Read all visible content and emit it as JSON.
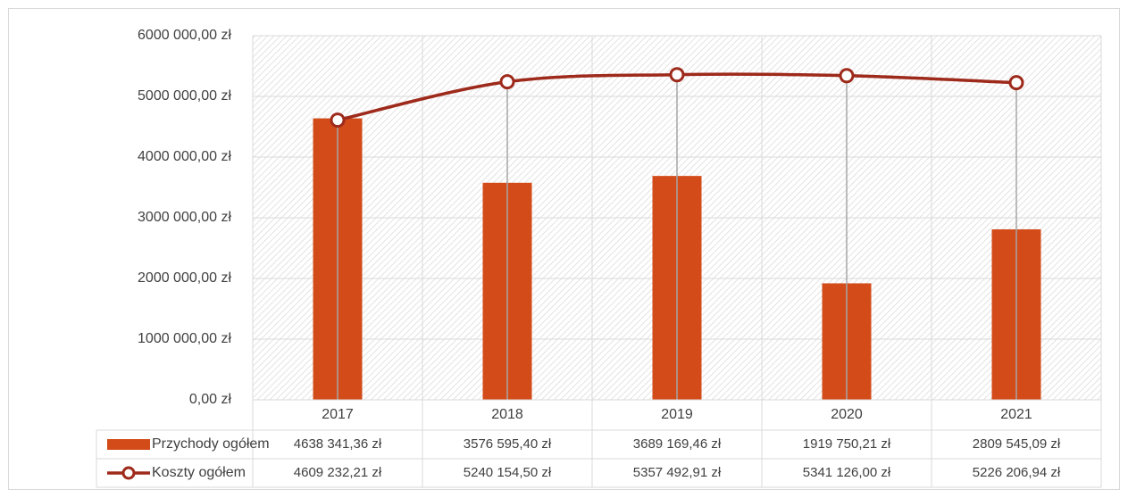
{
  "chart_data": {
    "type": "bar",
    "categories": [
      "2017",
      "2018",
      "2019",
      "2020",
      "2021"
    ],
    "series": [
      {
        "name": "Przychody ogółem",
        "type": "bar",
        "color": "#d34b19",
        "values": [
          4638341.36,
          3576595.4,
          3689169.46,
          1919750.21,
          2809545.09
        ],
        "value_labels": [
          "4638 341,36 zł",
          "3576 595,40 zł",
          "3689 169,46 zł",
          "1919 750,21 zł",
          "2809 545,09 zł"
        ]
      },
      {
        "name": "Koszty ogółem",
        "type": "line",
        "color": "#9e2a1b",
        "values": [
          4609232.21,
          5240154.5,
          5357492.91,
          5341126.0,
          5226206.94
        ],
        "value_labels": [
          "4609 232,21 zł",
          "5240 154,50 zł",
          "5357 492,91 zł",
          "5341 126,00 zł",
          "5226 206,94 zł"
        ]
      }
    ],
    "ylim": [
      0,
      6000000
    ],
    "yticks": [
      {
        "value": 0,
        "label": "0,00 zł"
      },
      {
        "value": 1000000,
        "label": "1000 000,00 zł"
      },
      {
        "value": 2000000,
        "label": "2000 000,00 zł"
      },
      {
        "value": 3000000,
        "label": "3000 000,00 zł"
      },
      {
        "value": 4000000,
        "label": "4000 000,00 zł"
      },
      {
        "value": 5000000,
        "label": "5000 000,00 zł"
      },
      {
        "value": 6000000,
        "label": "6000 000,00 zł"
      }
    ],
    "grid": true,
    "drop_lines": true,
    "data_table": true
  }
}
